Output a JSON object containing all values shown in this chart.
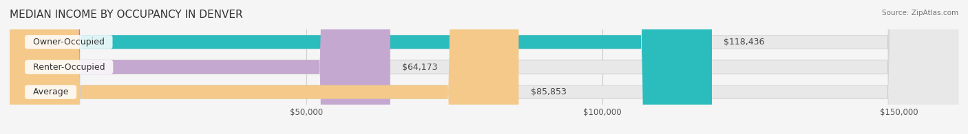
{
  "title": "MEDIAN INCOME BY OCCUPANCY IN DENVER",
  "source": "Source: ZipAtlas.com",
  "categories": [
    "Owner-Occupied",
    "Renter-Occupied",
    "Average"
  ],
  "values": [
    118436,
    64173,
    85853
  ],
  "bar_colors": [
    "#2bbcbe",
    "#c4a8d0",
    "#f5c98a"
  ],
  "bar_edge_colors": [
    "#2bbcbe",
    "#c4a8d0",
    "#f5c98a"
  ],
  "value_labels": [
    "$118,436",
    "$64,173",
    "$85,853"
  ],
  "xlim": [
    0,
    160000
  ],
  "xticks": [
    0,
    50000,
    100000,
    150000
  ],
  "xticklabels": [
    "",
    "$50,000",
    "$100,000",
    "$150,000"
  ],
  "background_color": "#f5f5f5",
  "bar_bg_color": "#e8e8e8",
  "title_fontsize": 11,
  "bar_height": 0.55,
  "bar_label_fontsize": 9,
  "category_label_fontsize": 9
}
